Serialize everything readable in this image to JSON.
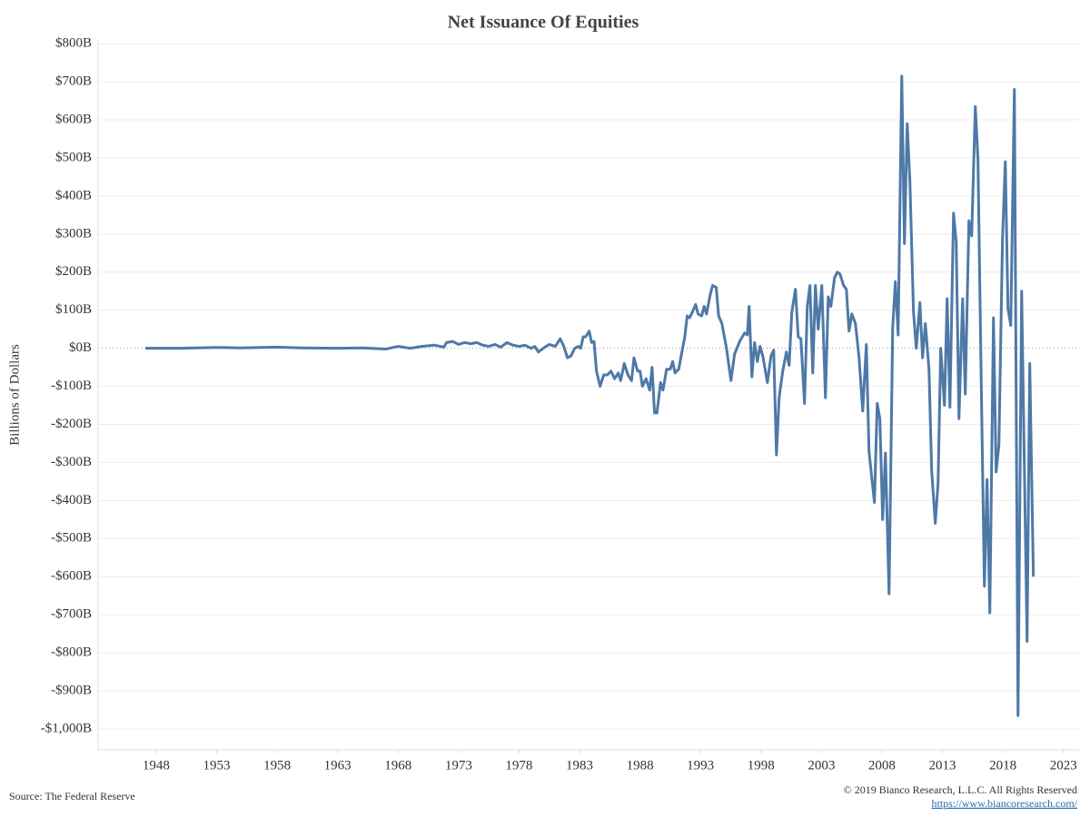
{
  "chart_data": {
    "type": "line",
    "title": "Net Issuance Of Equities",
    "y_label": "Billions of Dollars",
    "color": "#4e79a7",
    "grid": true,
    "xlim": [
      1943.2,
      2024.3
    ],
    "xticks": [
      1948,
      1953,
      1958,
      1963,
      1968,
      1973,
      1978,
      1983,
      1988,
      1993,
      1998,
      2003,
      2008,
      2013,
      2018,
      2023
    ],
    "ylim": [
      -1055,
      810
    ],
    "yticks": [
      {
        "value": 800,
        "label": "$800B"
      },
      {
        "value": 700,
        "label": "$700B"
      },
      {
        "value": 600,
        "label": "$600B"
      },
      {
        "value": 500,
        "label": "$500B"
      },
      {
        "value": 400,
        "label": "$400B"
      },
      {
        "value": 300,
        "label": "$300B"
      },
      {
        "value": 200,
        "label": "$200B"
      },
      {
        "value": 100,
        "label": "$100B"
      },
      {
        "value": 0,
        "label": "$0B"
      },
      {
        "value": -100,
        "label": "-$100B"
      },
      {
        "value": -200,
        "label": "-$200B"
      },
      {
        "value": -300,
        "label": "-$300B"
      },
      {
        "value": -400,
        "label": "-$400B"
      },
      {
        "value": -500,
        "label": "-$500B"
      },
      {
        "value": -600,
        "label": "-$600B"
      },
      {
        "value": -700,
        "label": "-$700B"
      },
      {
        "value": -800,
        "label": "-$800B"
      },
      {
        "value": -900,
        "label": "-$900B"
      },
      {
        "value": -1000,
        "label": "-$1,000B"
      }
    ],
    "x": [
      1947.1,
      1950,
      1953,
      1955,
      1958,
      1960,
      1963,
      1965,
      1967,
      1968,
      1969,
      1970,
      1971,
      1971.8,
      1972,
      1972.5,
      1973,
      1973.5,
      1974,
      1974.5,
      1975,
      1975.5,
      1976,
      1976.5,
      1977,
      1977.5,
      1978,
      1978.5,
      1979,
      1979.3,
      1979.6,
      1980,
      1980.5,
      1981,
      1981.4,
      1981.7,
      1982,
      1982.3,
      1982.6,
      1982.9,
      1983.1,
      1983.3,
      1983.5,
      1983.8,
      1984,
      1984.2,
      1984.4,
      1984.7,
      1985,
      1985.3,
      1985.6,
      1985.9,
      1986.2,
      1986.4,
      1986.7,
      1987,
      1987.3,
      1987.5,
      1987.8,
      1988,
      1988.2,
      1988.5,
      1988.8,
      1989,
      1989.2,
      1989.4,
      1989.7,
      1989.9,
      1990.2,
      1990.5,
      1990.7,
      1990.9,
      1991.2,
      1991.7,
      1991.9,
      1992.1,
      1992.4,
      1992.6,
      1992.8,
      1993.1,
      1993.3,
      1993.5,
      1993.8,
      1994.0,
      1994.3,
      1994.5,
      1994.77,
      1995.15,
      1995.52,
      1995.82,
      1996.27,
      1996.65,
      1996.87,
      1997.02,
      1997.25,
      1997.47,
      1997.7,
      1997.92,
      1998.15,
      1998.53,
      1998.83,
      1999.05,
      1999.28,
      1999.5,
      1999.8,
      2000.1,
      2000.33,
      2000.55,
      2000.85,
      2001.08,
      2001.3,
      2001.6,
      2001.83,
      2002.05,
      2002.28,
      2002.5,
      2002.73,
      2003.03,
      2003.33,
      2003.56,
      2003.78,
      2004.08,
      2004.31,
      2004.53,
      2004.83,
      2005.06,
      2005.28,
      2005.51,
      2005.81,
      2006.11,
      2006.41,
      2006.71,
      2006.93,
      2007.16,
      2007.38,
      2007.61,
      2007.83,
      2008.06,
      2008.29,
      2008.59,
      2008.89,
      2009.11,
      2009.34,
      2009.64,
      2009.86,
      2010.09,
      2010.31,
      2010.61,
      2010.84,
      2011.14,
      2011.36,
      2011.59,
      2011.89,
      2012.11,
      2012.41,
      2012.64,
      2012.86,
      2013.17,
      2013.39,
      2013.62,
      2013.92,
      2014.14,
      2014.37,
      2014.67,
      2014.89,
      2015.19,
      2015.42,
      2015.72,
      2015.94,
      2016.17,
      2016.47,
      2016.69,
      2016.92,
      2017.22,
      2017.44,
      2017.67,
      2017.97,
      2018.2,
      2018.42,
      2018.65,
      2018.95,
      2019.25,
      2019.55,
      2020.0,
      2020.22,
      2020.52
    ],
    "values": [
      0,
      0,
      2,
      1,
      3,
      1,
      0,
      1,
      -2,
      5,
      0,
      5,
      8,
      3,
      15,
      18,
      10,
      15,
      12,
      15,
      8,
      5,
      10,
      3,
      15,
      8,
      5,
      8,
      0,
      5,
      -10,
      0,
      10,
      5,
      25,
      5,
      -25,
      -20,
      0,
      5,
      0,
      30,
      30,
      45,
      15,
      18,
      -60,
      -100,
      -70,
      -70,
      -60,
      -80,
      -65,
      -85,
      -40,
      -70,
      -85,
      -25,
      -60,
      -60,
      -100,
      -80,
      -110,
      -50,
      -170,
      -170,
      -90,
      -110,
      -55,
      -55,
      -35,
      -65,
      -55,
      30,
      85,
      80,
      100,
      115,
      90,
      85,
      110,
      90,
      140,
      165,
      160,
      85,
      65,
      0,
      -85,
      -15,
      20,
      40,
      35,
      110,
      -75,
      15,
      -35,
      5,
      -20,
      -90,
      -20,
      -5,
      -280,
      -130,
      -60,
      -10,
      -45,
      95,
      155,
      30,
      25,
      -145,
      110,
      165,
      -65,
      165,
      50,
      165,
      -130,
      135,
      110,
      185,
      200,
      195,
      165,
      155,
      45,
      90,
      65,
      -25,
      -165,
      10,
      -270,
      -340,
      -405,
      -145,
      -185,
      -450,
      -275,
      -645,
      55,
      175,
      35,
      715,
      275,
      590,
      440,
      95,
      0,
      120,
      -25,
      65,
      -55,
      -320,
      -460,
      -355,
      0,
      -150,
      130,
      -155,
      355,
      280,
      -185,
      130,
      -120,
      335,
      295,
      635,
      495,
      -5,
      -625,
      -345,
      -695,
      80,
      -325,
      -255,
      290,
      490,
      105,
      60,
      680,
      -965,
      150,
      -770,
      -40,
      -600
    ]
  },
  "footer": {
    "source": "Source: The Federal Reserve",
    "copyright": "© 2019 Bianco Research, L.L.C. All Rights Reserved",
    "url": "https://www.biancoresearch.com/"
  }
}
